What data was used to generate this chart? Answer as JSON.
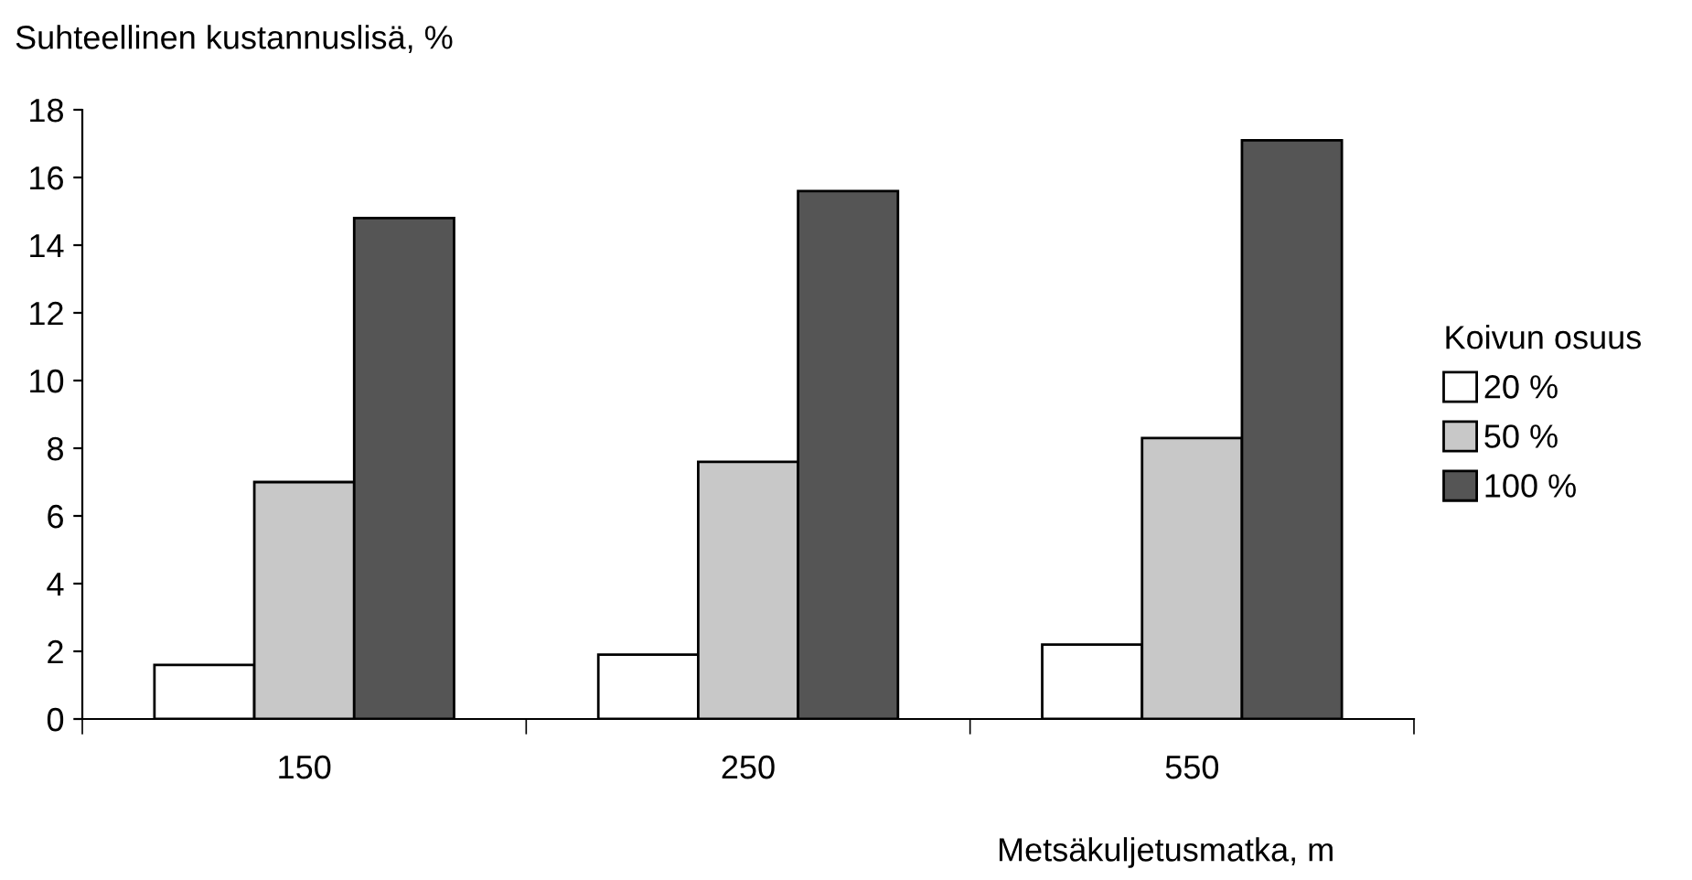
{
  "chart_data": {
    "type": "bar",
    "ylabel": "Suhteellinen kustannuslisä, %",
    "xlabel": "Metsäkuljetusmatka, m",
    "legend_title": "Koivun osuus",
    "categories": [
      "150",
      "250",
      "550"
    ],
    "series": [
      {
        "name": "20 %",
        "color": "#ffffff",
        "values": [
          1.6,
          1.9,
          2.2
        ]
      },
      {
        "name": "50 %",
        "color": "#c8c8c8",
        "values": [
          7.0,
          7.6,
          8.3
        ]
      },
      {
        "name": "100 %",
        "color": "#555555",
        "values": [
          14.8,
          15.6,
          17.1
        ]
      }
    ],
    "ylim": [
      0,
      18
    ],
    "yticks": [
      0,
      2,
      4,
      6,
      8,
      10,
      12,
      14,
      16,
      18
    ],
    "grid": false,
    "legend": "right"
  }
}
